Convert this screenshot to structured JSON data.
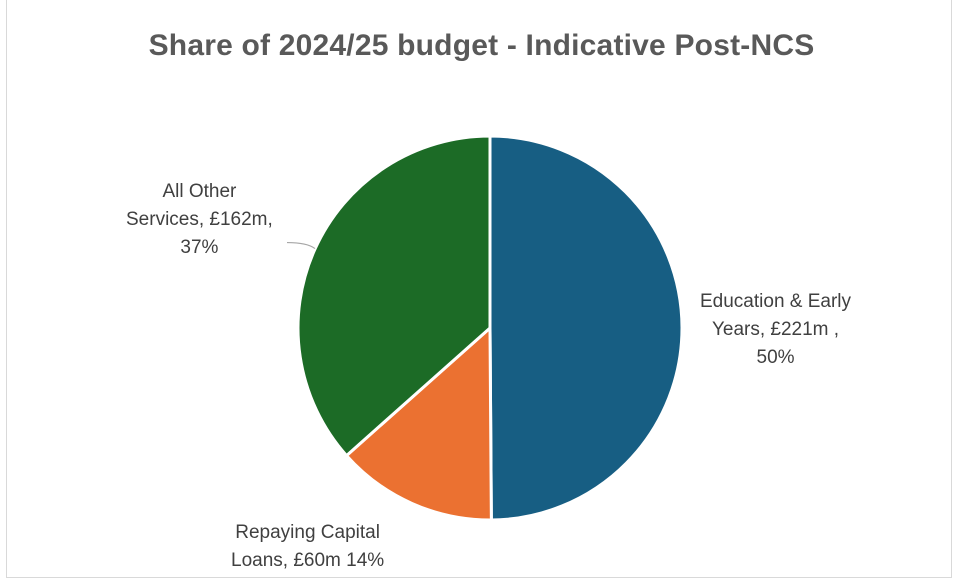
{
  "chart_data": {
    "type": "pie",
    "title": "Share of 2024/25 budget - Indicative  Post-NCS",
    "start_angle_deg": 0,
    "direction": "clockwise",
    "slices": [
      {
        "category": "Education & Early Years",
        "value": 221,
        "percent": 50,
        "color": "#175e83",
        "label_lines": [
          "Education & Early",
          "Years, £221m ,",
          "50%"
        ]
      },
      {
        "category": "Repaying Capital Loans",
        "value": 60,
        "percent": 14,
        "color": "#eb7131",
        "label_lines": [
          "Repaying Capital",
          "Loans, £60m 14%"
        ]
      },
      {
        "category": "All Other Services",
        "value": 162,
        "percent": 37,
        "color": "#1c6b26",
        "label_lines": [
          "All Other",
          "Services, £162m,",
          "37%"
        ]
      }
    ]
  }
}
